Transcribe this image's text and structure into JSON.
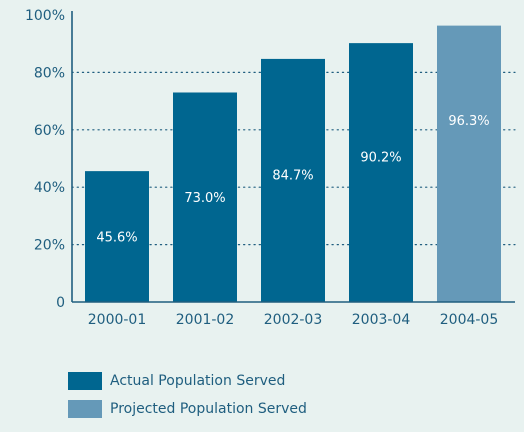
{
  "chart_data": {
    "type": "bar",
    "categories": [
      "2000-01",
      "2001-02",
      "2002-03",
      "2003-04",
      "2004-05"
    ],
    "values": [
      45.6,
      73.0,
      84.7,
      90.2,
      96.3
    ],
    "data_labels": [
      "45.6%",
      "73.0%",
      "84.7%",
      "90.2%",
      "96.3%"
    ],
    "bar_kinds": [
      "actual",
      "actual",
      "actual",
      "actual",
      "projected"
    ],
    "y_ticks": [
      {
        "value": 0,
        "label": "0"
      },
      {
        "value": 20,
        "label": "20%"
      },
      {
        "value": 40,
        "label": "40%"
      },
      {
        "value": 60,
        "label": "60%"
      },
      {
        "value": 80,
        "label": "80%"
      },
      {
        "value": 100,
        "label": "100%"
      }
    ],
    "ylim": [
      0,
      100
    ],
    "grid": "dotted horizontal",
    "legend_placement": "bottom-left",
    "series": [
      {
        "name": "Actual Population Served",
        "key": "actual",
        "color": "#006690"
      },
      {
        "name": "Projected Population Served",
        "key": "projected",
        "color": "#6599b8"
      }
    ],
    "colors": {
      "background": "#e8f2f0",
      "axis": "#1f5e7f",
      "grid": "#1f5e7f",
      "text": "#1f5e7f",
      "data_label": "#ffffff"
    }
  }
}
